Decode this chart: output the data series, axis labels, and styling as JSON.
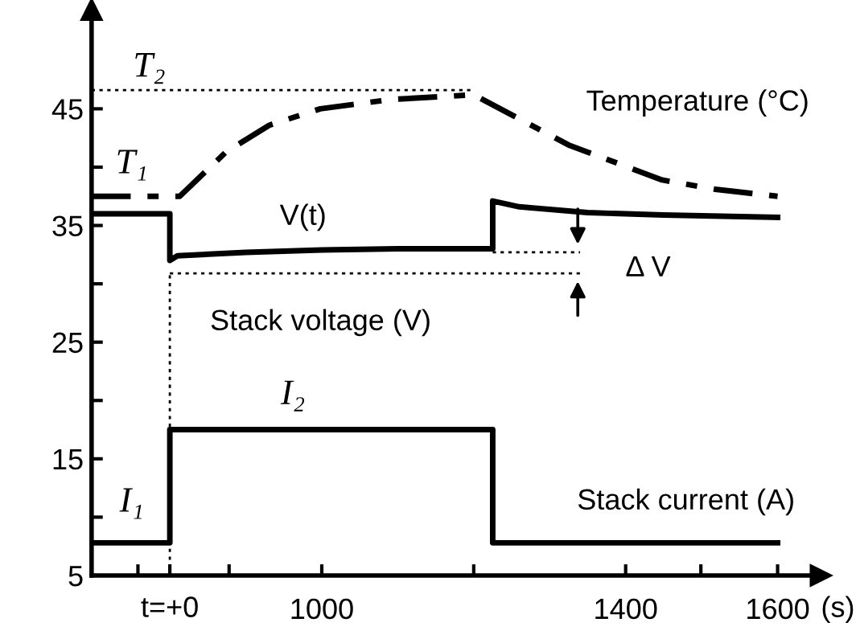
{
  "chart_data": {
    "type": "line",
    "xlabel": "(s)",
    "xlim": [
      697,
      1657
    ],
    "ylim": [
      5,
      53.5
    ],
    "xticks": [
      {
        "value": 758,
        "label": null
      },
      {
        "value": 800,
        "label": null
      },
      {
        "value": 878,
        "label": null
      },
      1000,
      {
        "value": 1200,
        "label": null
      },
      1400,
      {
        "value": 1499,
        "label": null
      },
      1600
    ],
    "yticks": [
      5,
      {
        "value": 10,
        "label": null
      },
      15,
      {
        "value": 20,
        "label": null
      },
      25,
      {
        "value": 30,
        "label": null
      },
      35,
      {
        "value": 40,
        "label": null
      },
      45
    ],
    "grid": false,
    "legend": false,
    "marker": "none",
    "series": [
      {
        "color": "#000000",
        "line_style": "dashdot",
        "x": [
          697,
          800,
          813,
          874,
          931,
          998,
          1091,
          1200,
          1325,
          1448,
          1518,
          1600
        ],
        "values": [
          37.5,
          37.5,
          37.5,
          41.3,
          43.6,
          45,
          45.8,
          46.2,
          41.9,
          38.9,
          38.1,
          37.5
        ]
      },
      {
        "color": "#000000",
        "line_style": "solid",
        "x": [
          697,
          800,
          800,
          810,
          900,
          1000,
          1100,
          1225,
          1225,
          1260,
          1350,
          1450,
          1600
        ],
        "values": [
          36,
          36,
          32,
          32.4,
          32.7,
          32.9,
          33,
          33,
          37.1,
          36.6,
          36.1,
          35.9,
          35.7
        ]
      },
      {
        "color": "#000000",
        "line_style": "solid",
        "x": [
          697,
          800,
          800,
          1225,
          1225,
          1600
        ],
        "values": [
          7.8,
          7.8,
          17.5,
          17.5,
          7.8,
          7.8
        ]
      },
      {
        "color": "#000000",
        "line_style": "dotted",
        "x": [
          697,
          1200
        ],
        "values": [
          46.6,
          46.6
        ]
      },
      {
        "color": "#000000",
        "line_style": "dotted",
        "x": [
          1225,
          1340
        ],
        "values": [
          32.7,
          32.7
        ]
      },
      {
        "color": "#000000",
        "line_style": "dotted",
        "x": [
          800,
          1340
        ],
        "values": [
          30.9,
          30.9
        ]
      }
    ],
    "ref_lines": [
      {
        "axis": "x",
        "value": 800,
        "label": "t=+0",
        "line_style": "dotted"
      }
    ],
    "annotations": [
      "T₂",
      "T₁",
      "Temperature (°C)",
      "V(t)",
      "Δ V",
      "Stack voltage (V)",
      "I₂",
      "I₁",
      "Stack current (A)"
    ]
  }
}
